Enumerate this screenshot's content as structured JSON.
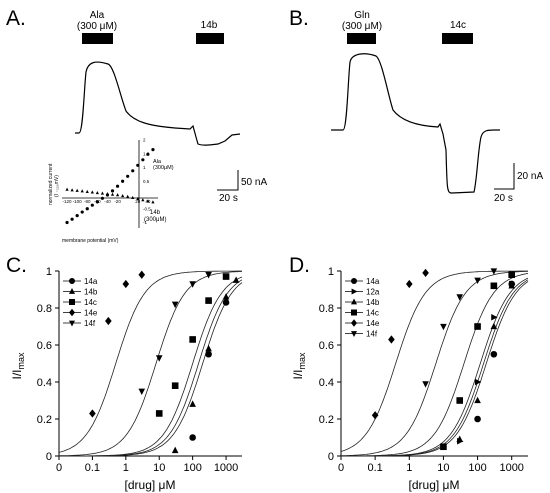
{
  "panels": {
    "A": {
      "letter": "A.",
      "bar1_label_line1": "Ala",
      "bar1_label_line2": "(300 μM)",
      "bar2_label": "14b",
      "scale_current": "50 nA",
      "scale_time": "20 s",
      "inset": {
        "ylabel_line1": "normalized current",
        "ylabel_line2": "(I ₋₁₂₀mV)",
        "xlabel": "membrane potential (mV)",
        "xticks": [
          "-120",
          "-100",
          "-80",
          "-60",
          "-40",
          "-20",
          "20",
          "40"
        ],
        "yticks": [
          "2",
          "1.5",
          "1",
          "0.5",
          "-0.5",
          "-1"
        ],
        "series_ala_line1": "Ala",
        "series_ala_line2": "(300μM)",
        "series_14b_line1": "14b",
        "series_14b_line2": "(300μM)"
      }
    },
    "B": {
      "letter": "B.",
      "bar1_label_line1": "Gln",
      "bar1_label_line2": "(300 μM)",
      "bar2_label": "14c",
      "scale_current": "20 nA",
      "scale_time": "20 s"
    },
    "C": {
      "letter": "C.",
      "ylabel_main": "I/I",
      "ylabel_sub": "max",
      "xlabel": "[drug] μM",
      "yticks": [
        "0",
        "0.2",
        "0.4",
        "0.6",
        "0.8",
        "1"
      ],
      "xticks": [
        "0",
        "0.1",
        "1",
        "10",
        "100",
        "1000"
      ]
    },
    "D": {
      "letter": "D.",
      "ylabel_main": "I/I",
      "ylabel_sub": "max",
      "xlabel": "[drug] μM",
      "yticks": [
        "0",
        "0.2",
        "0.4",
        "0.6",
        "0.8",
        "1"
      ],
      "xticks": [
        "0",
        "0.1",
        "1",
        "10",
        "100",
        "1000"
      ]
    }
  },
  "chart_data": [
    {
      "type": "scatter",
      "panel": "A-inset",
      "xlabel": "membrane potential (mV)",
      "ylabel": "normalized current (I ₋₁₂₀mV)",
      "xlim": [
        -130,
        60
      ],
      "ylim": [
        -1.2,
        2
      ],
      "series": [
        {
          "name": "Ala (300μM)",
          "marker": "circle",
          "x": [
            -120,
            -110,
            -100,
            -90,
            -80,
            -70,
            -60,
            -50,
            -40,
            -30,
            -20,
            -10,
            0,
            10,
            20,
            30,
            40,
            50
          ],
          "y": [
            -1.0,
            -0.88,
            -0.75,
            -0.62,
            -0.5,
            -0.37,
            -0.25,
            -0.12,
            0.0,
            0.15,
            0.32,
            0.5,
            0.68,
            0.88,
            1.08,
            1.28,
            1.48,
            1.65
          ]
        },
        {
          "name": "14b (300μM)",
          "marker": "triangle",
          "x": [
            -120,
            -110,
            -100,
            -90,
            -80,
            -70,
            -60,
            -50,
            -40,
            -30,
            -20,
            -10,
            0,
            10,
            20,
            30,
            40,
            50
          ],
          "y": [
            0.2,
            0.18,
            0.16,
            0.14,
            0.12,
            0.1,
            0.08,
            0.06,
            0.04,
            0.02,
            0.0,
            -0.03,
            -0.06,
            -0.1,
            -0.14,
            -0.18,
            -0.22,
            -0.26
          ]
        }
      ]
    },
    {
      "type": "scatter",
      "panel": "C",
      "xscale": "log",
      "xlabel": "[drug] μM",
      "ylabel": "I/Imax",
      "xlim": [
        0.01,
        3000
      ],
      "ylim": [
        0,
        1
      ],
      "legend": "top-left",
      "series": [
        {
          "name": "14a",
          "marker": "circle",
          "ec50": 150,
          "hill": 1.0,
          "x": [
            100,
            300,
            1000
          ],
          "y": [
            0.1,
            0.55,
            0.83
          ]
        },
        {
          "name": "14b",
          "marker": "triangle",
          "ec50": 200,
          "hill": 1.0,
          "x": [
            30,
            100,
            300,
            1000,
            2000
          ],
          "y": [
            0.03,
            0.28,
            0.58,
            0.86,
            0.95
          ]
        },
        {
          "name": "14c",
          "marker": "square",
          "ec50": 100,
          "hill": 1.0,
          "x": [
            10,
            30,
            100,
            300,
            1000
          ],
          "y": [
            0.23,
            0.38,
            0.63,
            0.84,
            0.97
          ]
        },
        {
          "name": "14e",
          "marker": "diamond",
          "ec50": 0.5,
          "hill": 1.0,
          "x": [
            0.1,
            0.3,
            1,
            3
          ],
          "y": [
            0.23,
            0.73,
            0.93,
            0.98
          ]
        },
        {
          "name": "14f",
          "marker": "triangle-down",
          "ec50": 8,
          "hill": 1.0,
          "x": [
            3,
            10,
            30,
            100,
            300
          ],
          "y": [
            0.35,
            0.53,
            0.82,
            0.93,
            0.98
          ]
        }
      ]
    },
    {
      "type": "scatter",
      "panel": "D",
      "xscale": "log",
      "xlabel": "[drug] μM",
      "ylabel": "I/Imax",
      "xlim": [
        0.01,
        3000
      ],
      "ylim": [
        0,
        1
      ],
      "legend": "top-left",
      "series": [
        {
          "name": "14a",
          "marker": "circle",
          "ec50": 150,
          "hill": 1.0,
          "x": [
            100,
            300,
            1000
          ],
          "y": [
            0.2,
            0.55,
            0.93
          ]
        },
        {
          "name": "12a",
          "marker": "triangle-right",
          "ec50": 180,
          "hill": 1.0,
          "x": [
            30,
            100,
            300,
            1000
          ],
          "y": [
            0.08,
            0.4,
            0.75,
            0.93
          ]
        },
        {
          "name": "14b",
          "marker": "triangle",
          "ec50": 120,
          "hill": 1.0,
          "x": [
            30,
            100,
            300,
            1000
          ],
          "y": [
            0.09,
            0.3,
            0.7,
            0.92
          ]
        },
        {
          "name": "14c",
          "marker": "square",
          "ec50": 40,
          "hill": 1.0,
          "x": [
            10,
            30,
            100,
            300,
            1000
          ],
          "y": [
            0.05,
            0.3,
            0.7,
            0.92,
            0.98
          ]
        },
        {
          "name": "14e",
          "marker": "diamond",
          "ec50": 0.4,
          "hill": 1.0,
          "x": [
            0.1,
            0.3,
            1,
            3
          ],
          "y": [
            0.22,
            0.63,
            0.93,
            0.99
          ]
        },
        {
          "name": "14f",
          "marker": "triangle-down",
          "ec50": 6,
          "hill": 1.0,
          "x": [
            3,
            10,
            30,
            100,
            300
          ],
          "y": [
            0.39,
            0.7,
            0.86,
            0.95,
            1.0
          ]
        }
      ]
    }
  ]
}
